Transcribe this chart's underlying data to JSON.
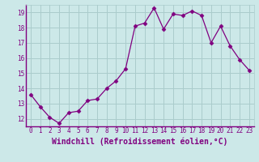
{
  "x": [
    0,
    1,
    2,
    3,
    4,
    5,
    6,
    7,
    8,
    9,
    10,
    11,
    12,
    13,
    14,
    15,
    16,
    17,
    18,
    19,
    20,
    21,
    22,
    23
  ],
  "y": [
    13.6,
    12.8,
    12.1,
    11.7,
    12.4,
    12.5,
    13.2,
    13.3,
    14.0,
    14.5,
    15.3,
    18.1,
    18.3,
    19.3,
    17.9,
    18.9,
    18.8,
    19.1,
    18.8,
    17.0,
    18.1,
    16.8,
    15.9,
    15.2
  ],
  "line_color": "#800080",
  "marker": "D",
  "marker_size": 2.5,
  "bg_color": "#cce8e8",
  "grid_color": "#aacccc",
  "xlabel": "Windchill (Refroidissement éolien,°C)",
  "xlim": [
    -0.5,
    23.5
  ],
  "ylim": [
    11.5,
    19.5
  ],
  "yticks": [
    12,
    13,
    14,
    15,
    16,
    17,
    18,
    19
  ],
  "xticks": [
    0,
    1,
    2,
    3,
    4,
    5,
    6,
    7,
    8,
    9,
    10,
    11,
    12,
    13,
    14,
    15,
    16,
    17,
    18,
    19,
    20,
    21,
    22,
    23
  ],
  "xtick_labels": [
    "0",
    "1",
    "2",
    "3",
    "4",
    "5",
    "6",
    "7",
    "8",
    "9",
    "10",
    "11",
    "12",
    "13",
    "14",
    "15",
    "16",
    "17",
    "18",
    "19",
    "20",
    "21",
    "22",
    "23"
  ],
  "tick_color": "#800080",
  "label_color": "#800080",
  "tick_fontsize": 5.5,
  "xlabel_fontsize": 7,
  "spine_color": "#800080"
}
